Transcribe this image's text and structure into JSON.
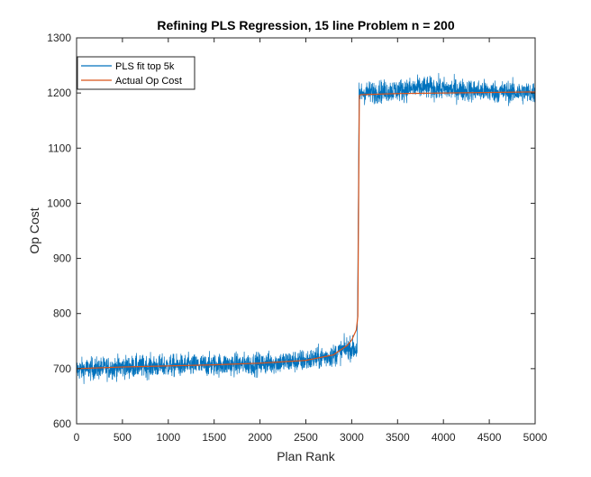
{
  "chart_data": {
    "type": "line",
    "title": "Refining PLS Regression, 15 line Problem n = 200",
    "xlabel": "Plan Rank",
    "ylabel": "Op Cost",
    "xlim": [
      0,
      5000
    ],
    "ylim": [
      600,
      1300
    ],
    "xticks": [
      0,
      500,
      1000,
      1500,
      2000,
      2500,
      3000,
      3500,
      4000,
      4500,
      5000
    ],
    "yticks": [
      600,
      700,
      800,
      900,
      1000,
      1100,
      1200,
      1300
    ],
    "grid": false,
    "legend_position": "top-left",
    "series": [
      {
        "name": "PLS fit top 5k",
        "color": "#0072BD",
        "style": "noisy",
        "x": [
          0,
          500,
          1000,
          1500,
          2000,
          2500,
          2800,
          2950,
          3060,
          3080,
          3100,
          3500,
          3800,
          4000,
          4500,
          5000
        ],
        "y": [
          698,
          703,
          705,
          707,
          709,
          715,
          724,
          738,
          735,
          1198,
          1200,
          1205,
          1210,
          1207,
          1203,
          1200
        ],
        "noise_amplitude": 18
      },
      {
        "name": "Actual Op Cost",
        "color": "#D95319",
        "style": "smooth",
        "x": [
          0,
          500,
          1000,
          1500,
          2000,
          2500,
          2800,
          2950,
          3000,
          3050,
          3070,
          3080,
          3090,
          3100,
          3500,
          4000,
          4500,
          5000
        ],
        "y": [
          700,
          703,
          705,
          707,
          710,
          715,
          725,
          742,
          752,
          770,
          800,
          1195,
          1196,
          1197,
          1199,
          1200,
          1201,
          1202
        ]
      }
    ]
  }
}
